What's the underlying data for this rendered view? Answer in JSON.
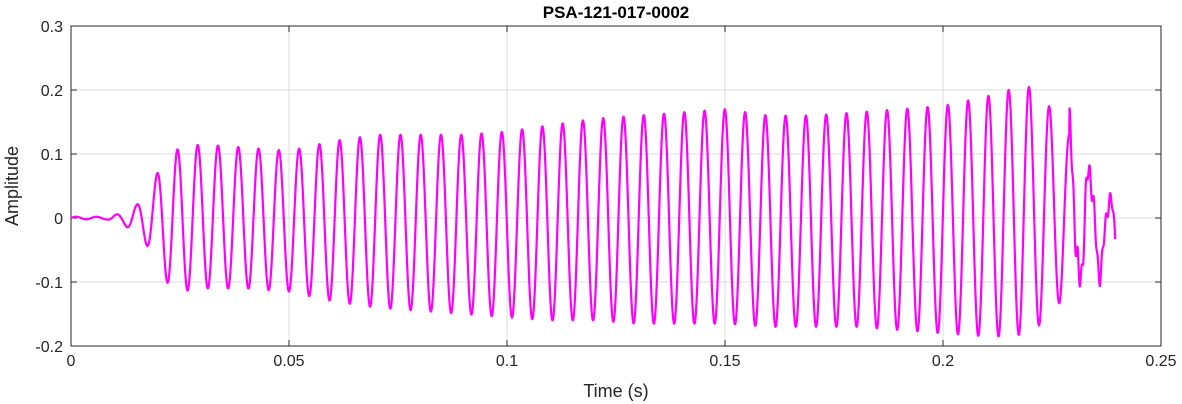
{
  "chart_data": {
    "type": "line",
    "title": "PSA-121-017-0002",
    "xlabel": "Time (s)",
    "ylabel": "Amplitude",
    "xlim": [
      0,
      0.25
    ],
    "ylim": [
      -0.2,
      0.3
    ],
    "xticks": [
      0,
      0.05,
      0.1,
      0.15,
      0.2,
      0.25
    ],
    "xtick_labels": [
      "0",
      "0.05",
      "0.1",
      "0.15",
      "0.2",
      "0.25"
    ],
    "yticks": [
      -0.2,
      -0.1,
      0,
      0.1,
      0.2,
      0.3
    ],
    "ytick_labels": [
      "-0.2",
      "-0.1",
      "0",
      "0.1",
      "0.2",
      "0.3"
    ],
    "grid": true,
    "series": [
      {
        "color": "#ff00ff",
        "period": 0.00465,
        "x": [
          0,
          0.008,
          0.012,
          0.015,
          0.017,
          0.019,
          0.021,
          0.023,
          0.025,
          0.03,
          0.04,
          0.05,
          0.06,
          0.07,
          0.08,
          0.09,
          0.1,
          0.11,
          0.12,
          0.13,
          0.14,
          0.15,
          0.16,
          0.17,
          0.18,
          0.19,
          0.2,
          0.21,
          0.215,
          0.22,
          0.225,
          0.228,
          0.231,
          0.234,
          0.237,
          0.2395
        ],
        "upper": [
          0.002,
          0.002,
          0.008,
          0.02,
          0.035,
          0.06,
          0.085,
          0.1,
          0.11,
          0.115,
          0.11,
          0.105,
          0.12,
          0.13,
          0.13,
          0.13,
          0.135,
          0.145,
          0.155,
          0.16,
          0.165,
          0.17,
          0.16,
          0.16,
          0.165,
          0.17,
          0.175,
          0.19,
          0.2,
          0.205,
          0.17,
          0.14,
          0.11,
          0.07,
          0.04,
          0.02
        ],
        "lower": [
          -0.002,
          -0.002,
          -0.01,
          -0.025,
          -0.04,
          -0.055,
          -0.09,
          -0.11,
          -0.115,
          -0.11,
          -0.11,
          -0.115,
          -0.13,
          -0.14,
          -0.145,
          -0.15,
          -0.155,
          -0.16,
          -0.16,
          -0.165,
          -0.165,
          -0.165,
          -0.17,
          -0.17,
          -0.17,
          -0.175,
          -0.18,
          -0.185,
          -0.185,
          -0.18,
          -0.15,
          -0.12,
          -0.1,
          -0.09,
          -0.08,
          -0.07
        ]
      }
    ]
  }
}
